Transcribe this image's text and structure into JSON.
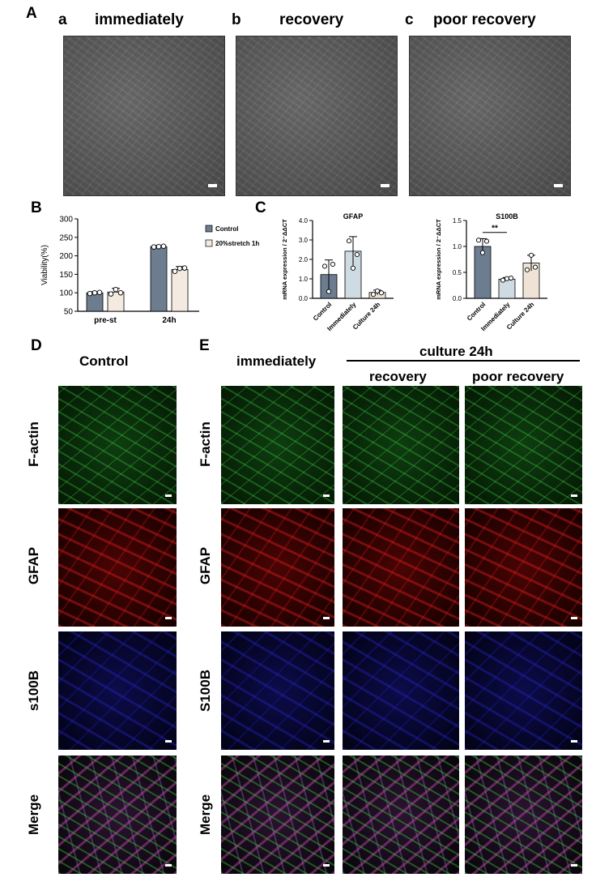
{
  "panelA": {
    "label": "A",
    "subpanels": [
      {
        "letter": "a",
        "title": "immediately"
      },
      {
        "letter": "b",
        "title": "recovery"
      },
      {
        "letter": "c",
        "title": "poor recovery"
      }
    ]
  },
  "panelB": {
    "label": "B"
  },
  "panelC": {
    "label": "C"
  },
  "panelD": {
    "label": "D",
    "title": "Control",
    "rows": [
      "F-actin",
      "GFAP",
      "s100B",
      "Merge"
    ]
  },
  "panelE": {
    "label": "E",
    "col_immediately": "immediately",
    "group_title": "culture 24h",
    "col_recovery": "recovery",
    "col_poor": "poor recovery",
    "rows": [
      "F-actin",
      "GFAP",
      "S100B",
      "Merge"
    ]
  },
  "colors": {
    "control_bar": "#6b7d8f",
    "stretch_bar": "#f3eae0",
    "immediately_bar": "#cfdbe3",
    "culture_bar": "#efe3d6"
  },
  "chart_data": [
    {
      "id": "viability",
      "type": "bar",
      "categories": [
        "pre-st",
        "24h"
      ],
      "series": [
        {
          "name": "Control",
          "values": [
            100,
            225
          ],
          "err": [
            3,
            3
          ],
          "points": [
            [
              98,
              100,
              101
            ],
            [
              224,
              225,
              226
            ]
          ]
        },
        {
          "name": "20%stretch 1h",
          "values": [
            102,
            163
          ],
          "err": [
            10,
            8
          ],
          "points": [
            [
              97,
              109,
              100
            ],
            [
              158,
              166,
              167
            ]
          ]
        }
      ],
      "ylabel": "Viability(%)",
      "ylim": [
        50,
        300
      ],
      "yticks": [
        50,
        100,
        150,
        200,
        250,
        300
      ]
    },
    {
      "id": "gfap",
      "type": "bar",
      "title": "GFAP",
      "categories": [
        "Control",
        "Immediately",
        "Culture 24h"
      ],
      "values": [
        1.22,
        2.42,
        0.3
      ],
      "err": [
        0.75,
        0.75,
        0.12
      ],
      "points": [
        [
          1.65,
          0.35,
          1.75
        ],
        [
          2.95,
          1.55,
          2.25
        ],
        [
          0.2,
          0.38,
          0.28
        ]
      ],
      "ylabel": "mRNA expression / 2⁻ΔΔCT",
      "ylim": [
        0,
        4
      ],
      "yticks": [
        "0.0",
        "1.0",
        "2.0",
        "3.0",
        "4.0"
      ]
    },
    {
      "id": "s100b",
      "type": "bar",
      "title": "S100B",
      "categories": [
        "Control",
        "Immediately",
        "Culture 24h"
      ],
      "values": [
        1.0,
        0.37,
        0.68
      ],
      "err": [
        0.15,
        0.03,
        0.15
      ],
      "points": [
        [
          1.12,
          0.88,
          1.1
        ],
        [
          0.35,
          0.38,
          0.39
        ],
        [
          0.55,
          0.83,
          0.6
        ]
      ],
      "significance": "**",
      "ylabel": "mRNA expression / 2⁻ΔΔCT",
      "ylim": [
        0,
        1.5
      ],
      "yticks": [
        "0.0",
        "0.5",
        "1.0",
        "1.5"
      ]
    }
  ]
}
